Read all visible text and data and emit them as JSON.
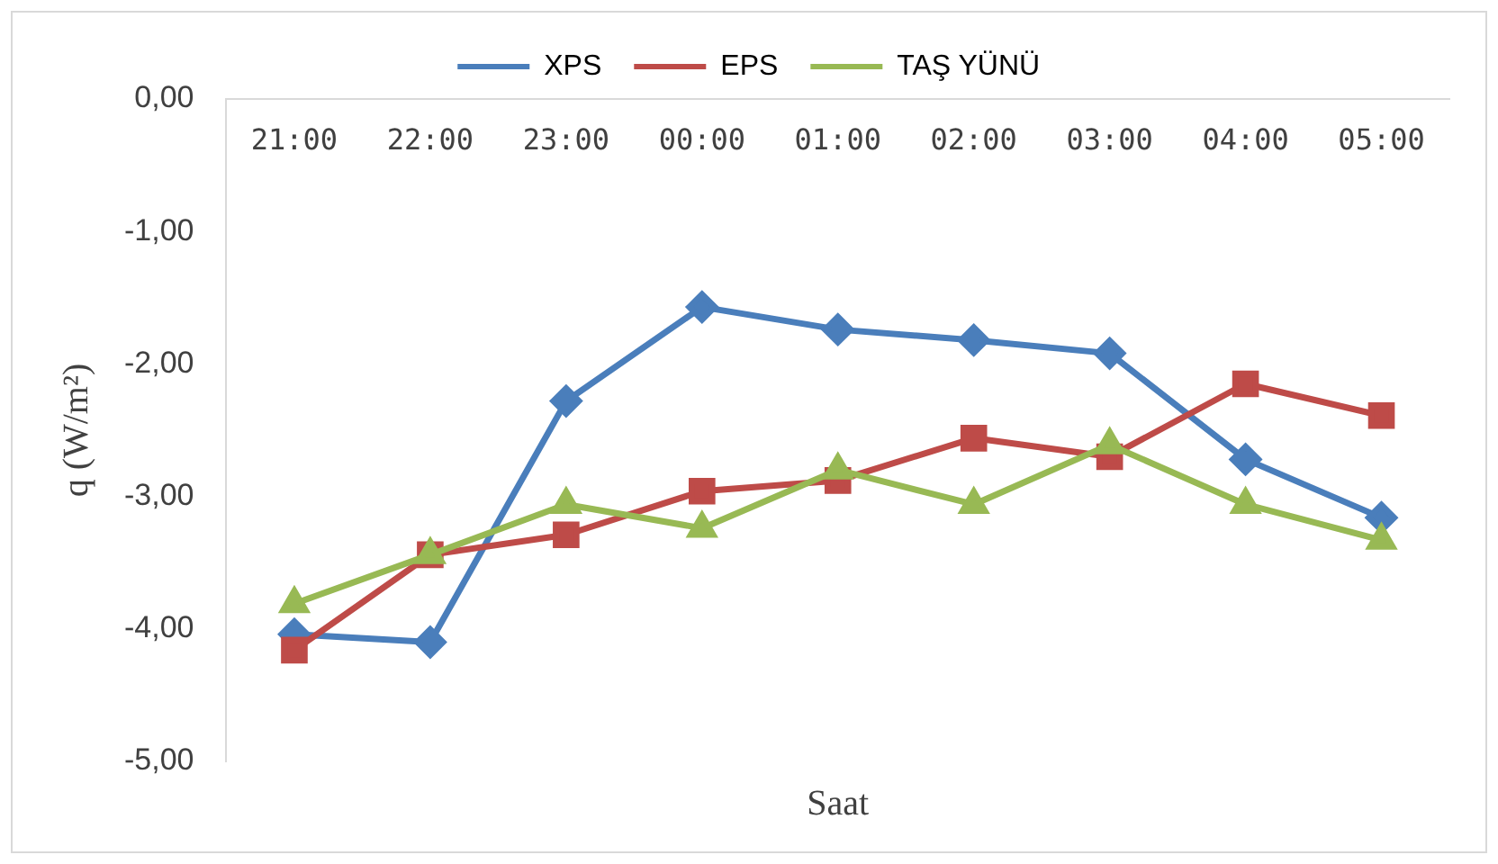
{
  "chart_data": {
    "type": "line",
    "xlabel": "Saat",
    "ylabel": "q (W/m²)",
    "categories": [
      "21:00",
      "22:00",
      "23:00",
      "00:00",
      "01:00",
      "02:00",
      "03:00",
      "04:00",
      "05:00"
    ],
    "series": [
      {
        "name": "XPS",
        "color": "#4a7ebb",
        "marker": "diamond",
        "values": [
          -4.04,
          -4.1,
          -2.28,
          -1.57,
          -1.74,
          -1.82,
          -1.92,
          -2.72,
          -3.16
        ]
      },
      {
        "name": "EPS",
        "color": "#be4b48",
        "marker": "square",
        "values": [
          -4.16,
          -3.44,
          -3.29,
          -2.96,
          -2.88,
          -2.56,
          -2.7,
          -2.15,
          -2.39
        ]
      },
      {
        "name": "TAŞ YÜNÜ",
        "color": "#98b954",
        "marker": "triangle",
        "values": [
          -3.81,
          -3.44,
          -3.06,
          -3.24,
          -2.8,
          -3.06,
          -2.61,
          -3.06,
          -3.33
        ]
      }
    ],
    "ylim": [
      -5,
      0
    ],
    "yticks": [
      {
        "value": -5,
        "label": "-5,00"
      },
      {
        "value": -4,
        "label": "-4,00"
      },
      {
        "value": -3,
        "label": "-3,00"
      },
      {
        "value": -2,
        "label": "-2,00"
      },
      {
        "value": -1,
        "label": "-1,00"
      },
      {
        "value": 0,
        "label": "0,00"
      }
    ],
    "grid": false,
    "legend": "top",
    "line_style": "solid"
  }
}
